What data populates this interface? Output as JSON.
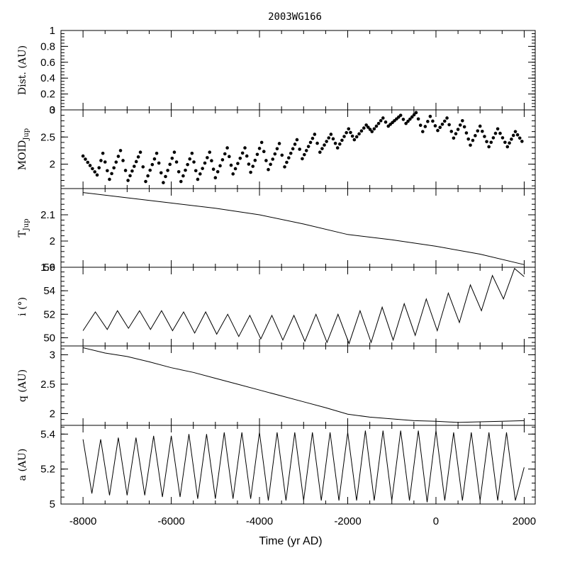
{
  "chart_data": {
    "type": "line",
    "title": "2003WG166",
    "xlabel": "Time (yr AD)",
    "xlim": [
      -8500,
      2250
    ],
    "x_ticks": [
      -8000,
      -6000,
      -4000,
      -2000,
      0,
      2000
    ],
    "x_tick_labels": [
      "-8000",
      "-6000",
      "-4000",
      "-2000",
      "0",
      "2000"
    ],
    "panels": [
      {
        "id": "dist",
        "ylabel": "Dist. (AU)",
        "ylim": [
          0,
          1
        ],
        "y_ticks": [
          0,
          0.2,
          0.4,
          0.6,
          0.8,
          1
        ],
        "y_tick_labels": [
          "0",
          "0.2",
          "0.4",
          "0.6",
          "0.8",
          "1"
        ],
        "style": "empty",
        "series": []
      },
      {
        "id": "moid",
        "ylabel": "MOID",
        "ylabel_sub": "Jup",
        "ylim": [
          1.55,
          3.0
        ],
        "y_ticks": [
          2,
          2.5,
          3
        ],
        "y_tick_labels": [
          "2",
          "2.5",
          "3"
        ],
        "style": "dots",
        "series": [
          {
            "x": [
              -8000,
              -7680,
              -7550,
              -7400,
              -7150,
              -6980,
              -6700,
              -6580,
              -6330,
              -6180,
              -5930,
              -5780,
              -5530,
              -5400,
              -5130,
              -5000,
              -4730,
              -4600,
              -4330,
              -4200,
              -3950,
              -3800,
              -3550,
              -3430,
              -3150,
              -3030,
              -2750,
              -2630,
              -2380,
              -2230,
              -1980,
              -1850,
              -1580,
              -1450,
              -1200,
              -1080,
              -800,
              -680,
              -450,
              -300,
              -130,
              40,
              250,
              400,
              600,
              780,
              1000,
              1200,
              1400,
              1620,
              1800,
              1950
            ],
            "y": [
              2.15,
              1.8,
              2.2,
              1.72,
              2.25,
              1.7,
              2.22,
              1.68,
              2.2,
              1.66,
              2.22,
              1.68,
              2.2,
              1.72,
              2.22,
              1.75,
              2.3,
              1.82,
              2.3,
              1.85,
              2.4,
              1.9,
              2.38,
              1.95,
              2.45,
              2.1,
              2.55,
              2.22,
              2.55,
              2.3,
              2.65,
              2.45,
              2.72,
              2.6,
              2.85,
              2.7,
              2.9,
              2.75,
              2.95,
              2.6,
              2.88,
              2.62,
              2.85,
              2.48,
              2.8,
              2.35,
              2.7,
              2.32,
              2.65,
              2.32,
              2.6,
              2.42
            ]
          }
        ]
      },
      {
        "id": "tjup",
        "ylabel": "T",
        "ylabel_sub": "Jup",
        "ylim": [
          1.9,
          2.2
        ],
        "y_ticks": [
          1.9,
          2,
          2.1
        ],
        "y_tick_labels": [
          "1.9",
          "2",
          "2.1"
        ],
        "style": "line",
        "series": [
          {
            "x": [
              -8000,
              -7000,
              -6000,
              -5000,
              -4000,
              -3000,
              -2000,
              -1000,
              0,
              1000,
              2000
            ],
            "y": [
              2.185,
              2.165,
              2.145,
              2.125,
              2.1,
              2.065,
              2.025,
              2.005,
              1.98,
              1.95,
              1.91
            ]
          }
        ]
      },
      {
        "id": "incl",
        "ylabel": "i (°)",
        "ylim": [
          49.3,
          56
        ],
        "y_ticks": [
          50,
          52,
          54,
          56
        ],
        "y_tick_labels": [
          "50",
          "52",
          "54",
          "56"
        ],
        "style": "line",
        "series": [
          {
            "x": [
              -8000,
              -7720,
              -7450,
              -7220,
              -6970,
              -6720,
              -6470,
              -6220,
              -5970,
              -5720,
              -5470,
              -5220,
              -4970,
              -4720,
              -4470,
              -4220,
              -3970,
              -3720,
              -3470,
              -3220,
              -2970,
              -2720,
              -2470,
              -2220,
              -1970,
              -1720,
              -1470,
              -1220,
              -970,
              -720,
              -470,
              -220,
              30,
              280,
              530,
              780,
              1030,
              1280,
              1530,
              1780,
              2000
            ],
            "y": [
              50.6,
              52.2,
              50.7,
              52.3,
              50.8,
              52.3,
              50.7,
              52.3,
              50.6,
              52.2,
              50.4,
              52.2,
              50.3,
              52.0,
              50.1,
              51.9,
              49.9,
              51.9,
              49.8,
              51.9,
              49.7,
              52.0,
              49.6,
              52.0,
              49.5,
              52.3,
              49.6,
              52.6,
              49.8,
              52.9,
              50.2,
              53.3,
              50.6,
              53.8,
              51.3,
              54.5,
              52.3,
              55.3,
              53.3,
              55.9,
              55.2
            ]
          }
        ]
      },
      {
        "id": "q",
        "ylabel": "q (AU)",
        "ylim": [
          1.8,
          3.15
        ],
        "y_ticks": [
          2,
          2.5,
          3
        ],
        "y_tick_labels": [
          "2",
          "2.5",
          "3"
        ],
        "style": "line",
        "series": [
          {
            "x": [
              -8000,
              -7500,
              -7000,
              -6500,
              -6000,
              -5500,
              -5000,
              -4500,
              -4000,
              -3500,
              -3000,
              -2500,
              -2000,
              -1500,
              -1000,
              -500,
              0,
              500,
              1000,
              1500,
              2000
            ],
            "y": [
              3.12,
              3.03,
              2.97,
              2.88,
              2.78,
              2.7,
              2.6,
              2.5,
              2.4,
              2.3,
              2.2,
              2.1,
              1.99,
              1.94,
              1.91,
              1.88,
              1.87,
              1.85,
              1.86,
              1.87,
              1.88
            ]
          }
        ]
      },
      {
        "id": "a",
        "ylabel": "a (AU)",
        "ylim": [
          5.0,
          5.45
        ],
        "y_ticks": [
          5,
          5.2,
          5.4
        ],
        "y_tick_labels": [
          "5",
          "5.2",
          "5.4"
        ],
        "style": "line",
        "series": [
          {
            "x": [
              -8000,
              -7800,
              -7600,
              -7400,
              -7200,
              -7000,
              -6800,
              -6600,
              -6400,
              -6200,
              -6000,
              -5800,
              -5600,
              -5400,
              -5200,
              -5000,
              -4800,
              -4600,
              -4400,
              -4200,
              -4000,
              -3800,
              -3600,
              -3400,
              -3200,
              -3000,
              -2800,
              -2600,
              -2400,
              -2200,
              -2000,
              -1800,
              -1600,
              -1400,
              -1200,
              -1000,
              -800,
              -600,
              -400,
              -200,
              0,
              200,
              400,
              600,
              800,
              1000,
              1200,
              1400,
              1600,
              1800,
              2000
            ],
            "y": [
              5.37,
              5.06,
              5.37,
              5.05,
              5.38,
              5.05,
              5.38,
              5.05,
              5.39,
              5.04,
              5.39,
              5.04,
              5.4,
              5.03,
              5.4,
              5.03,
              5.41,
              5.03,
              5.41,
              5.03,
              5.41,
              5.02,
              5.41,
              5.02,
              5.41,
              5.02,
              5.41,
              5.02,
              5.41,
              5.02,
              5.41,
              5.02,
              5.42,
              5.02,
              5.42,
              5.02,
              5.42,
              5.02,
              5.42,
              5.01,
              5.42,
              5.02,
              5.41,
              5.02,
              5.41,
              5.02,
              5.41,
              5.02,
              5.41,
              5.02,
              5.21
            ]
          }
        ]
      }
    ]
  }
}
